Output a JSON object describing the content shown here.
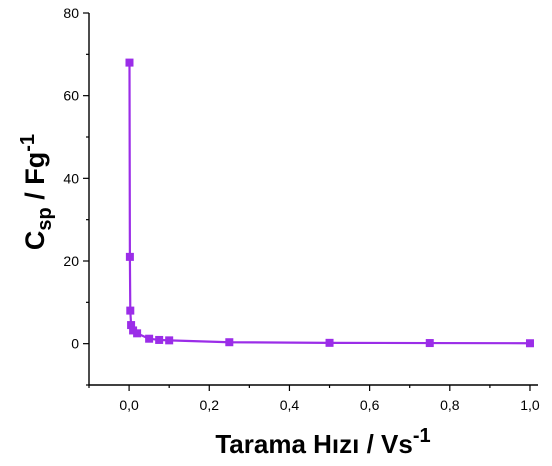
{
  "chart_data": {
    "type": "line",
    "title": "",
    "xlabel": {
      "main": "Tarama Hızı / Vs",
      "superscript": "-1"
    },
    "ylabel": {
      "base": "C",
      "subscript": "sp",
      "middle": " / Fg",
      "superscript": "-1"
    },
    "xlim": [
      -0.1,
      1.02
    ],
    "ylim": [
      -10,
      80
    ],
    "x_ticks": [
      0.0,
      0.2,
      0.4,
      0.6,
      0.8,
      1.0
    ],
    "x_tick_labels": [
      "0,0",
      "0,2",
      "0,4",
      "0,6",
      "0,8",
      "1,0"
    ],
    "y_ticks": [
      0,
      20,
      40,
      60,
      80
    ],
    "y_tick_labels": [
      "0",
      "20",
      "40",
      "60",
      "80"
    ],
    "grid": false,
    "series": [
      {
        "color": "#9b2de8",
        "marker": "square",
        "x": [
          0.001,
          0.002,
          0.003,
          0.005,
          0.01,
          0.02,
          0.05,
          0.075,
          0.1,
          0.25,
          0.5,
          0.75,
          1.0
        ],
        "y": [
          68,
          21,
          8,
          4.5,
          3.2,
          2.5,
          1.2,
          0.9,
          0.8,
          0.35,
          0.2,
          0.15,
          0.1
        ]
      }
    ]
  }
}
